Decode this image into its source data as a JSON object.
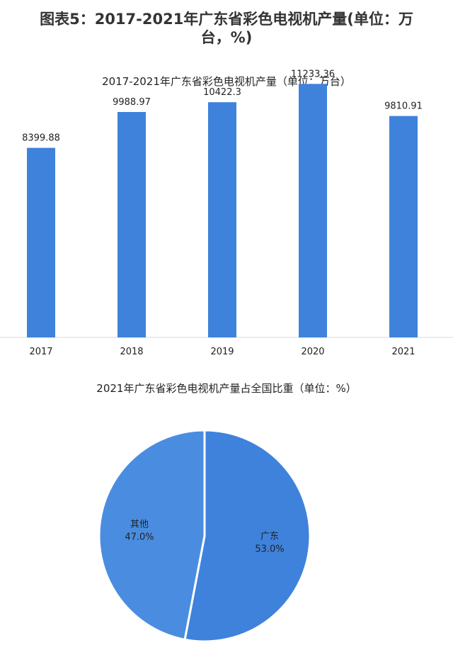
{
  "figure": {
    "title_line1": "图表5：2017-2021年广东省彩色电视机产量(单位：万",
    "title_line2": "台，%)"
  },
  "colors": {
    "bar": "#3e82dc",
    "pie_guangdong": "#3e82dc",
    "pie_other": "#4a8de0",
    "slice_border": "#ffffff",
    "baseline": "#d9d9d9"
  },
  "chart_data": [
    {
      "type": "bar",
      "title": "2017-2021年广东省彩色电视机产量（单位：万台）",
      "categories": [
        "2017",
        "2018",
        "2019",
        "2020",
        "2021"
      ],
      "values": [
        8399.88,
        9988.97,
        10422.3,
        11233.36,
        9810.91
      ],
      "value_labels": [
        "8399.88",
        "9988.97",
        "10422.3",
        "11233.36",
        "9810.91"
      ],
      "ylim": [
        0,
        12800
      ],
      "grid": false,
      "legend": "none"
    },
    {
      "type": "pie",
      "title": "2021年广东省彩色电视机产量占全国比重（单位：%）",
      "slices": [
        {
          "name": "广东",
          "value": 53.0,
          "label": "53.0%"
        },
        {
          "name": "其他",
          "value": 47.0,
          "label": "47.0%"
        }
      ],
      "start": "12 o'clock, clockwise"
    }
  ]
}
